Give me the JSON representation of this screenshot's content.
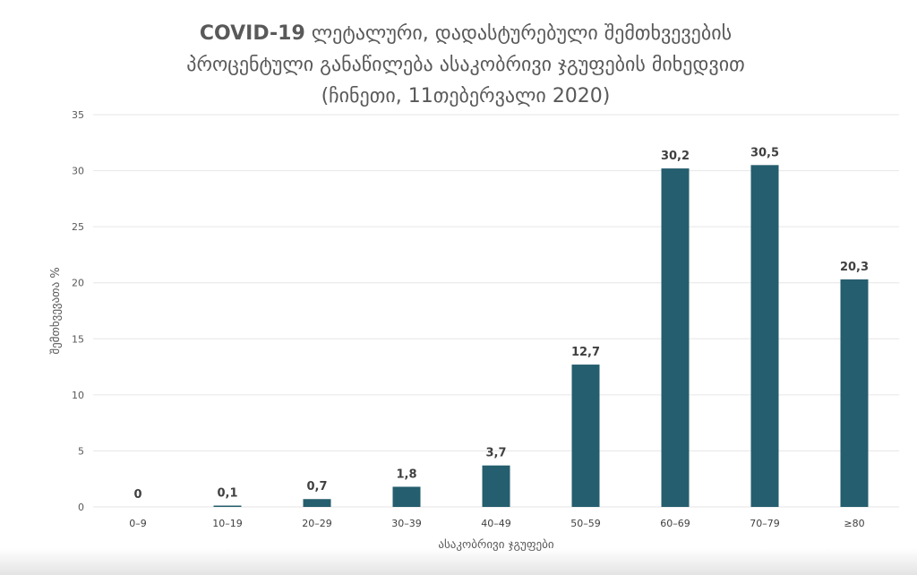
{
  "chart_data": {
    "type": "bar",
    "title_bold": "COVID-19",
    "title_line1_rest": " ლეტალური, დადასტურებული შემთხვევების",
    "title_line2": "პროცენტული განაწილება ასაკობრივი ჯგუფების მიხედვით",
    "title_line3": "(ჩინეთი, 11თებერვალი 2020)",
    "categories": [
      "0–9",
      "10–19",
      "20–29",
      "30–39",
      "40–49",
      "50–59",
      "60–69",
      "70–79",
      "≥80"
    ],
    "values": [
      0,
      0.1,
      0.7,
      1.8,
      3.7,
      12.7,
      30.2,
      30.5,
      20.3
    ],
    "data_labels": [
      "0",
      "0,1",
      "0,7",
      "1,8",
      "3,7",
      "12,7",
      "30,2",
      "30,5",
      "20,3"
    ],
    "y_ticks": [
      0,
      5,
      10,
      15,
      20,
      25,
      30,
      35
    ],
    "ylim": [
      0,
      35
    ],
    "xlabel": "ასაკობრივი ჯგუფები",
    "ylabel": "შემთხვევათა %",
    "grid": true,
    "bar_color": "#255e6e"
  }
}
